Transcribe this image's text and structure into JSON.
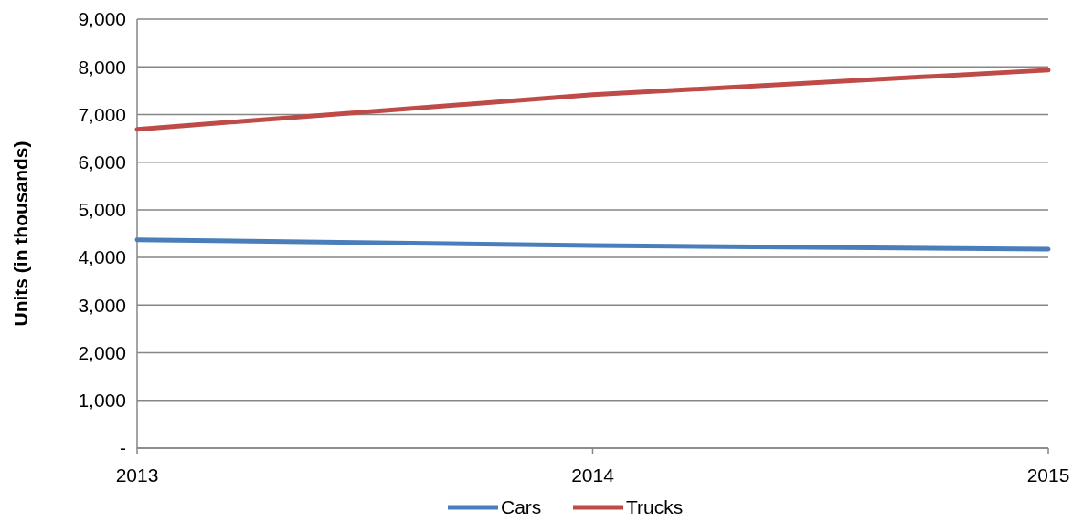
{
  "chart_data": {
    "type": "line",
    "ylabel": "Units (in thousands)",
    "categories": [
      "2013",
      "2014",
      "2015"
    ],
    "series": [
      {
        "name": "Cars",
        "color": "#4a7ebb",
        "values": [
          4370,
          4250,
          4175
        ]
      },
      {
        "name": "Trucks",
        "color": "#be4b48",
        "values": [
          6690,
          7415,
          7930
        ]
      }
    ],
    "ylim": [
      0,
      9000
    ],
    "yticks": [
      {
        "value": 0,
        "label": "-"
      },
      {
        "value": 1000,
        "label": "1,000"
      },
      {
        "value": 2000,
        "label": "2,000"
      },
      {
        "value": 3000,
        "label": "3,000"
      },
      {
        "value": 4000,
        "label": "4,000"
      },
      {
        "value": 5000,
        "label": "5,000"
      },
      {
        "value": 6000,
        "label": "6,000"
      },
      {
        "value": 7000,
        "label": "7,000"
      },
      {
        "value": 8000,
        "label": "8,000"
      },
      {
        "value": 9000,
        "label": "9,000"
      }
    ],
    "grid": "y",
    "legend": "bottom",
    "marker": "none",
    "line_style": "solid"
  }
}
